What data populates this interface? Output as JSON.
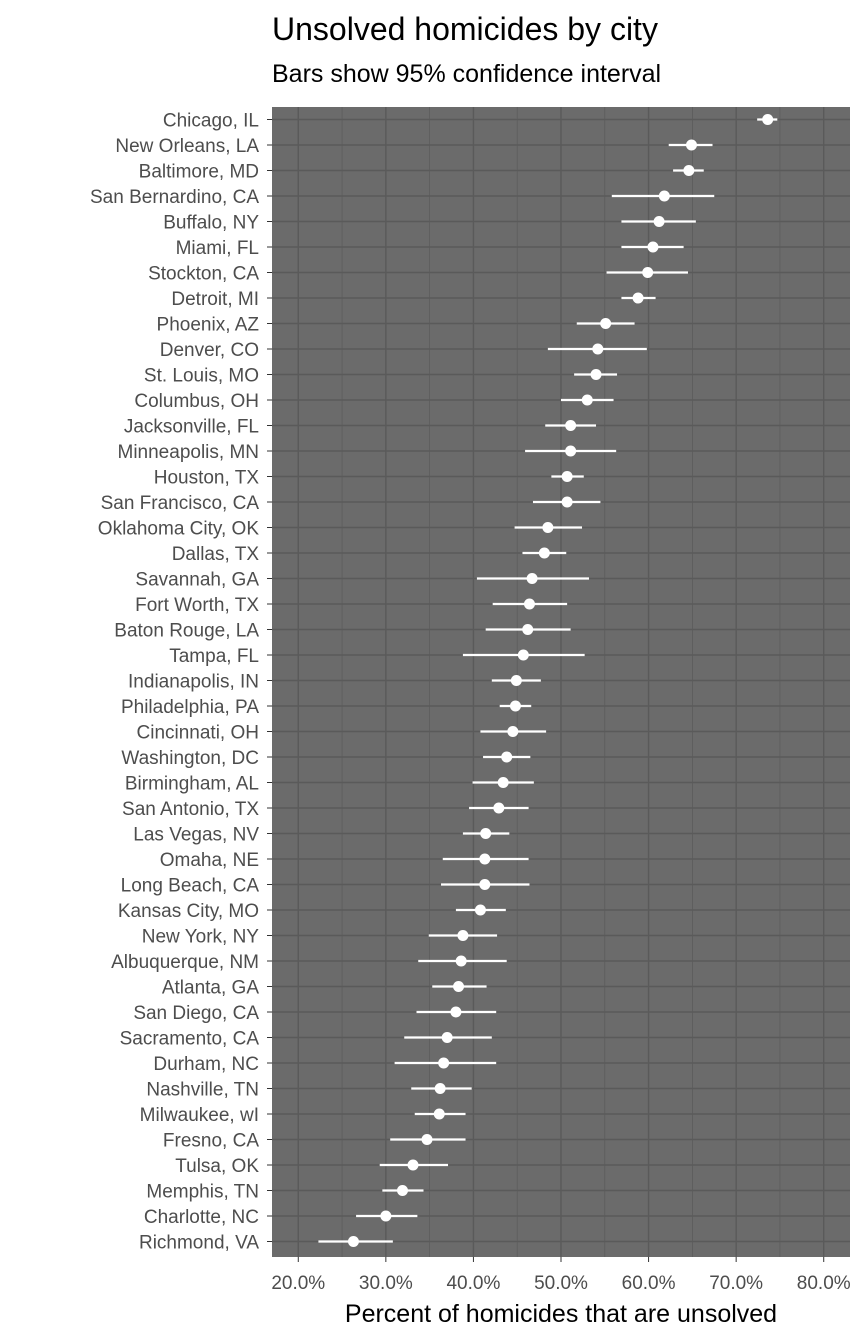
{
  "chart_data": {
    "type": "scatter",
    "title": "Unsolved homicides by city",
    "subtitle": "Bars show 95% confidence interval",
    "xlabel": "Percent of homicides that are unsolved",
    "ylabel": "",
    "xlim": [
      0.17,
      0.83
    ],
    "x_ticks": [
      0.2,
      0.3,
      0.4,
      0.5,
      0.6,
      0.7,
      0.8
    ],
    "x_tick_labels": [
      "20.0%",
      "30.0%",
      "40.0%",
      "50.0%",
      "60.0%",
      "70.0%",
      "80.0%"
    ],
    "grid": true,
    "legend": "none",
    "colors": {
      "panel": "#6b6b6b",
      "grid": "#5a5a5a",
      "mark": "#ffffff",
      "axis_text": "#4d4d4d"
    },
    "cities": [
      {
        "name": "Chicago, IL",
        "estimate": 0.736,
        "low": 0.724,
        "high": 0.747
      },
      {
        "name": "New Orleans, LA",
        "estimate": 0.649,
        "low": 0.623,
        "high": 0.673
      },
      {
        "name": "Baltimore, MD",
        "estimate": 0.646,
        "low": 0.628,
        "high": 0.663
      },
      {
        "name": "San Bernardino, CA",
        "estimate": 0.618,
        "low": 0.558,
        "high": 0.675
      },
      {
        "name": "Buffalo, NY",
        "estimate": 0.612,
        "low": 0.569,
        "high": 0.654
      },
      {
        "name": "Miami, FL",
        "estimate": 0.605,
        "low": 0.569,
        "high": 0.64
      },
      {
        "name": "Stockton, CA",
        "estimate": 0.599,
        "low": 0.552,
        "high": 0.645
      },
      {
        "name": "Detroit, MI",
        "estimate": 0.588,
        "low": 0.569,
        "high": 0.608
      },
      {
        "name": "Phoenix, AZ",
        "estimate": 0.551,
        "low": 0.518,
        "high": 0.584
      },
      {
        "name": "Denver, CO",
        "estimate": 0.542,
        "low": 0.485,
        "high": 0.598
      },
      {
        "name": "St. Louis, MO",
        "estimate": 0.54,
        "low": 0.515,
        "high": 0.564
      },
      {
        "name": "Columbus, OH",
        "estimate": 0.53,
        "low": 0.5,
        "high": 0.56
      },
      {
        "name": "Jacksonville, FL",
        "estimate": 0.511,
        "low": 0.482,
        "high": 0.54
      },
      {
        "name": "Minneapolis, MN",
        "estimate": 0.511,
        "low": 0.459,
        "high": 0.563
      },
      {
        "name": "Houston, TX",
        "estimate": 0.507,
        "low": 0.489,
        "high": 0.526
      },
      {
        "name": "San Francisco, CA",
        "estimate": 0.507,
        "low": 0.468,
        "high": 0.545
      },
      {
        "name": "Oklahoma City, OK",
        "estimate": 0.485,
        "low": 0.447,
        "high": 0.524
      },
      {
        "name": "Dallas, TX",
        "estimate": 0.481,
        "low": 0.456,
        "high": 0.506
      },
      {
        "name": "Savannah, GA",
        "estimate": 0.467,
        "low": 0.404,
        "high": 0.532
      },
      {
        "name": "Fort Worth, TX",
        "estimate": 0.464,
        "low": 0.422,
        "high": 0.507
      },
      {
        "name": "Baton Rouge, LA",
        "estimate": 0.462,
        "low": 0.414,
        "high": 0.511
      },
      {
        "name": "Tampa, FL",
        "estimate": 0.457,
        "low": 0.388,
        "high": 0.527
      },
      {
        "name": "Indianapolis, IN",
        "estimate": 0.449,
        "low": 0.421,
        "high": 0.477
      },
      {
        "name": "Philadelphia, PA",
        "estimate": 0.448,
        "low": 0.43,
        "high": 0.466
      },
      {
        "name": "Cincinnati, OH",
        "estimate": 0.445,
        "low": 0.408,
        "high": 0.483
      },
      {
        "name": "Washington, DC",
        "estimate": 0.438,
        "low": 0.411,
        "high": 0.465
      },
      {
        "name": "Birmingham, AL",
        "estimate": 0.434,
        "low": 0.399,
        "high": 0.469
      },
      {
        "name": "San Antonio, TX",
        "estimate": 0.429,
        "low": 0.395,
        "high": 0.463
      },
      {
        "name": "Las Vegas, NV",
        "estimate": 0.414,
        "low": 0.388,
        "high": 0.441
      },
      {
        "name": "Omaha, NE",
        "estimate": 0.413,
        "low": 0.365,
        "high": 0.463
      },
      {
        "name": "Long Beach, CA",
        "estimate": 0.413,
        "low": 0.363,
        "high": 0.464
      },
      {
        "name": "Kansas City, MO",
        "estimate": 0.408,
        "low": 0.38,
        "high": 0.437
      },
      {
        "name": "New York, NY",
        "estimate": 0.388,
        "low": 0.349,
        "high": 0.427
      },
      {
        "name": "Albuquerque, NM",
        "estimate": 0.386,
        "low": 0.337,
        "high": 0.438
      },
      {
        "name": "Atlanta, GA",
        "estimate": 0.383,
        "low": 0.353,
        "high": 0.415
      },
      {
        "name": "San Diego, CA",
        "estimate": 0.38,
        "low": 0.335,
        "high": 0.426
      },
      {
        "name": "Sacramento, CA",
        "estimate": 0.37,
        "low": 0.321,
        "high": 0.421
      },
      {
        "name": "Durham, NC",
        "estimate": 0.366,
        "low": 0.31,
        "high": 0.426
      },
      {
        "name": "Nashville, TN",
        "estimate": 0.362,
        "low": 0.329,
        "high": 0.398
      },
      {
        "name": "Milwaukee, wI",
        "estimate": 0.361,
        "low": 0.333,
        "high": 0.391
      },
      {
        "name": "Fresno, CA",
        "estimate": 0.347,
        "low": 0.305,
        "high": 0.391
      },
      {
        "name": "Tulsa, OK",
        "estimate": 0.331,
        "low": 0.293,
        "high": 0.371
      },
      {
        "name": "Memphis, TN",
        "estimate": 0.319,
        "low": 0.296,
        "high": 0.343
      },
      {
        "name": "Charlotte, NC",
        "estimate": 0.3,
        "low": 0.266,
        "high": 0.336
      },
      {
        "name": "Richmond, VA",
        "estimate": 0.263,
        "low": 0.223,
        "high": 0.308
      }
    ]
  }
}
